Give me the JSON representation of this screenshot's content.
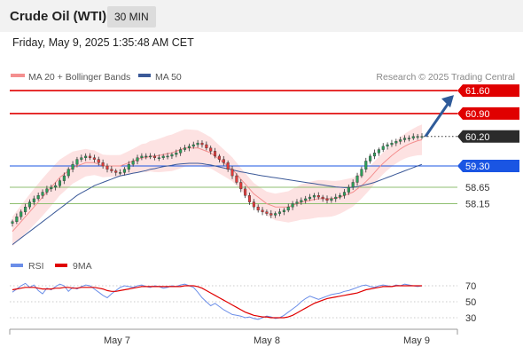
{
  "header": {
    "title": "Crude Oil (WTI)",
    "timeframe": "30 MIN"
  },
  "datetime": "Friday, May 9, 2025 1:35:48 AM CET",
  "legend": {
    "ma20_bb": "MA 20 + Bollinger Bands",
    "ma50": "MA 50",
    "rsi": "RSI",
    "rsi_ma": "9MA"
  },
  "credit": "Research © 2025 Trading Central",
  "colors": {
    "candle_up": "#2ca05a",
    "candle_down": "#e23b3b",
    "ma20": "#f48f8f",
    "bollinger": "#fde2e2",
    "ma50": "#3b5998",
    "resistance": "#e00000",
    "support_blue": "#1a55e3",
    "support_green": "#8fbf70",
    "pivot_dark": "#2b2b2b",
    "arrow": "#2f5b9a",
    "rsi_line": "#6b8ee8",
    "rsi_ma_line": "#e00000"
  },
  "levels": [
    {
      "value": "61.60",
      "type": "resistance"
    },
    {
      "value": "60.90",
      "type": "resistance"
    },
    {
      "value": "60.20",
      "type": "pivot"
    },
    {
      "value": "59.30",
      "type": "support_blue"
    },
    {
      "value": "58.65",
      "type": "support_green"
    },
    {
      "value": "58.15",
      "type": "support_green"
    }
  ],
  "rsi_ticks": [
    "70",
    "50",
    "30"
  ],
  "x_labels": [
    "May 7",
    "May 8",
    "May 9"
  ],
  "chart_data": [
    {
      "type": "candlestick",
      "title": "Crude Oil (WTI)",
      "timeframe": "30 MIN",
      "series": [
        {
          "name": "Price",
          "close": [
            57.6,
            57.75,
            57.9,
            58.05,
            58.2,
            58.3,
            58.4,
            58.5,
            58.6,
            58.65,
            58.7,
            58.85,
            59.0,
            59.2,
            59.35,
            59.5,
            59.55,
            59.6,
            59.55,
            59.5,
            59.4,
            59.3,
            59.2,
            59.15,
            59.1,
            59.1,
            59.2,
            59.35,
            59.45,
            59.55,
            59.6,
            59.6,
            59.6,
            59.55,
            59.55,
            59.6,
            59.6,
            59.65,
            59.7,
            59.8,
            59.85,
            59.9,
            59.95,
            60.0,
            59.95,
            59.85,
            59.75,
            59.6,
            59.5,
            59.4,
            59.2,
            59.0,
            58.8,
            58.6,
            58.4,
            58.2,
            58.05,
            57.95,
            57.9,
            57.85,
            57.8,
            57.85,
            57.9,
            57.95,
            58.05,
            58.15,
            58.2,
            58.25,
            58.3,
            58.35,
            58.4,
            58.35,
            58.3,
            58.25,
            58.3,
            58.35,
            58.4,
            58.5,
            58.65,
            58.8,
            59.0,
            59.2,
            59.45,
            59.6,
            59.7,
            59.8,
            59.9,
            59.95,
            60.0,
            60.05,
            60.1,
            60.15,
            60.15,
            60.2,
            60.2,
            60.2
          ]
        },
        {
          "name": "MA 20",
          "values": [
            57.3,
            57.45,
            57.6,
            57.75,
            57.9,
            58.05,
            58.2,
            58.35,
            58.5,
            58.65,
            58.8,
            58.95,
            59.05,
            59.15,
            59.25,
            59.3,
            59.35,
            59.4,
            59.4,
            59.4,
            59.35,
            59.3,
            59.3,
            59.3,
            59.3,
            59.3,
            59.35,
            59.4,
            59.45,
            59.5,
            59.55,
            59.55,
            59.6,
            59.6,
            59.62,
            59.65,
            59.68,
            59.7,
            59.75,
            59.8,
            59.85,
            59.85,
            59.85,
            59.85,
            59.8,
            59.75,
            59.7,
            59.6,
            59.5,
            59.4,
            59.3,
            59.2,
            59.05,
            58.9,
            58.75,
            58.6,
            58.45,
            58.35,
            58.25,
            58.15,
            58.1,
            58.05,
            58.05,
            58.05,
            58.05,
            58.1,
            58.15,
            58.2,
            58.22,
            58.25,
            58.28,
            58.3,
            58.3,
            58.3,
            58.3,
            58.32,
            58.35,
            58.4,
            58.45,
            58.5,
            58.6,
            58.7,
            58.82,
            58.95,
            59.1,
            59.25,
            59.38,
            59.5,
            59.62,
            59.72,
            59.82,
            59.9,
            59.97,
            60.02,
            60.07,
            60.1
          ]
        },
        {
          "name": "MA 50",
          "values": [
            56.9,
            57.0,
            57.1,
            57.2,
            57.3,
            57.4,
            57.5,
            57.6,
            57.7,
            57.8,
            57.9,
            58.0,
            58.1,
            58.2,
            58.3,
            58.4,
            58.48,
            58.55,
            58.62,
            58.7,
            58.75,
            58.8,
            58.85,
            58.9,
            58.95,
            59.0,
            59.02,
            59.05,
            59.08,
            59.1,
            59.13,
            59.16,
            59.2,
            59.22,
            59.25,
            59.28,
            59.3,
            59.32,
            59.35,
            59.36,
            59.37,
            59.38,
            59.38,
            59.38,
            59.37,
            59.35,
            59.33,
            59.3,
            59.27,
            59.24,
            59.21,
            59.18,
            59.15,
            59.12,
            59.1,
            59.07,
            59.05,
            59.02,
            59.0,
            58.98,
            58.96,
            58.94,
            58.92,
            58.9,
            58.88,
            58.86,
            58.84,
            58.82,
            58.8,
            58.78,
            58.76,
            58.74,
            58.72,
            58.7,
            58.68,
            58.66,
            58.65,
            58.64,
            58.64,
            58.65,
            58.67,
            58.7,
            58.73,
            58.76,
            58.8,
            58.85,
            58.9,
            58.95,
            59.0,
            59.05,
            59.1,
            59.15,
            59.2,
            59.25,
            59.3,
            59.35
          ]
        },
        {
          "name": "RSI",
          "values": [
            62,
            66,
            70,
            73,
            68,
            71,
            64,
            60,
            67,
            65,
            69,
            72,
            70,
            63,
            68,
            66,
            69,
            71,
            70,
            66,
            62,
            58,
            55,
            60,
            64,
            68,
            70,
            69,
            68,
            70,
            71,
            69,
            68,
            70,
            69,
            67,
            68,
            70,
            69,
            71,
            72,
            70,
            68,
            62,
            55,
            50,
            45,
            48,
            44,
            40,
            37,
            34,
            33,
            32,
            30,
            31,
            29,
            28,
            30,
            32,
            31,
            29,
            30,
            33,
            37,
            41,
            45,
            50,
            54,
            57,
            55,
            53,
            55,
            57,
            59,
            60,
            61,
            63,
            64,
            66,
            68,
            70,
            71,
            69,
            68,
            70,
            71,
            70,
            69,
            71,
            70,
            72,
            71,
            70,
            69,
            70
          ]
        },
        {
          "name": "9MA",
          "values": [
            65,
            66,
            67,
            68,
            68,
            68,
            67,
            66,
            66,
            66,
            67,
            67,
            68,
            68,
            67,
            67,
            68,
            68,
            68,
            68,
            67,
            66,
            64,
            63,
            63,
            64,
            65,
            66,
            67,
            68,
            69,
            69,
            69,
            69,
            69,
            69,
            69,
            69,
            69,
            69,
            70,
            70,
            70,
            69,
            67,
            64,
            61,
            58,
            55,
            52,
            49,
            46,
            43,
            40,
            37,
            35,
            33,
            32,
            31,
            31,
            30,
            30,
            30,
            30,
            31,
            33,
            36,
            39,
            42,
            45,
            48,
            50,
            52,
            54,
            55,
            56,
            57,
            58,
            59,
            60,
            61,
            63,
            65,
            66,
            67,
            68,
            69,
            69,
            69,
            70,
            70,
            70,
            70,
            70,
            70,
            70
          ]
        }
      ],
      "x_labels": [
        "May 7",
        "May 8",
        "May 9"
      ],
      "y_levels": [
        61.6,
        60.9,
        60.2,
        59.3,
        58.65,
        58.15
      ],
      "rsi_ticks": [
        70,
        50,
        30
      ]
    }
  ]
}
